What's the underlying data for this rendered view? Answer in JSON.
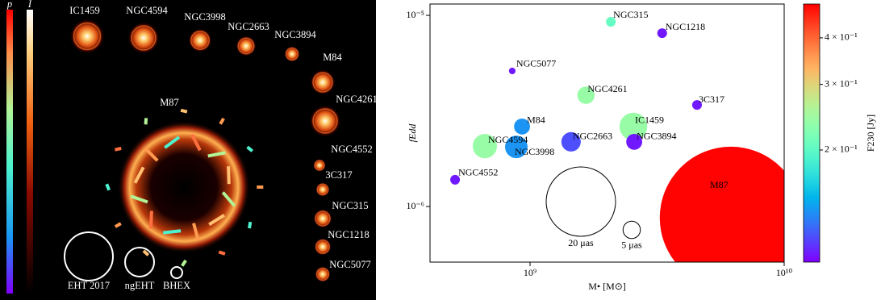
{
  "chart_data": [
    {
      "type": "image",
      "colorbar_labels": [
        "p",
        "I"
      ],
      "sources": [
        "IC1459",
        "NGC4594",
        "NGC3998",
        "NGC2663",
        "NGC3894",
        "M84",
        "NGC4261",
        "M87",
        "NGC4552",
        "3C317",
        "NGC315",
        "NGC1218",
        "NGC5077"
      ],
      "beam_labels": [
        "EHT 2017",
        "ngEHT",
        "BHEX"
      ]
    },
    {
      "type": "scatter",
      "x_label": "M• [M⊙]",
      "y_label": "fEdd",
      "colorbar_label": "F230 [Jy]",
      "xlog": true,
      "ylog": true,
      "clog": true,
      "colormap": "rainbow",
      "xlim": [
        404000000.0,
        10000000000.0
      ],
      "ylim": [
        5.12e-07,
        1.146e-05
      ],
      "clim": [
        0.1,
        0.493
      ],
      "xticks": [
        {
          "value": 1000000000.0,
          "label": "10⁹"
        },
        {
          "value": 10000000000.0,
          "label": "10¹⁰"
        }
      ],
      "yticks": [
        {
          "value": 1e-06,
          "label": "10⁻⁶"
        },
        {
          "value": 1e-05,
          "label": "10⁻⁵"
        }
      ],
      "cticks": [
        {
          "value": 0.2,
          "label": "2 × 10⁻¹"
        },
        {
          "value": 0.3,
          "label": "3 × 10⁻¹"
        },
        {
          "value": 0.4,
          "label": "4 × 10⁻¹"
        }
      ],
      "labels": [
        "NGC315",
        "NGC1218",
        "NGC5077",
        "NGC4261",
        "3C317",
        "M84",
        "IC1459",
        "NGC3894",
        "NGC4594",
        "NGC3998",
        "NGC2663",
        "NGC4552",
        "M87"
      ],
      "x": [
        2080000000.0,
        3310000000.0,
        851000000.0,
        1660000000.0,
        4540000000.0,
        930000000.0,
        2550000000.0,
        2570000000.0,
        664000000.0,
        883000000.0,
        1450000000.0,
        507000000.0,
        6170000000.0
      ],
      "values": [
        9.25e-06,
        8.07e-06,
        5.12e-06,
        3.82e-06,
        3.4e-06,
        2.62e-06,
        2.62e-06,
        2.18e-06,
        2.07e-06,
        2.05e-06,
        2.18e-06,
        1.38e-06,
        8.73e-07
      ],
      "sizes": [
        2.8,
        2.8,
        1.9,
        5,
        2.8,
        4.6,
        8,
        4.6,
        7,
        6.5,
        5.6,
        2.8,
        41
      ],
      "f230": [
        0.205,
        0.105,
        0.105,
        0.24,
        0.105,
        0.137,
        0.24,
        0.105,
        0.24,
        0.137,
        0.117,
        0.105,
        0.49
      ],
      "size_legend": [
        {
          "value": 20,
          "label": "20 μas"
        },
        {
          "value": 5,
          "label": "5 μas"
        }
      ]
    }
  ]
}
